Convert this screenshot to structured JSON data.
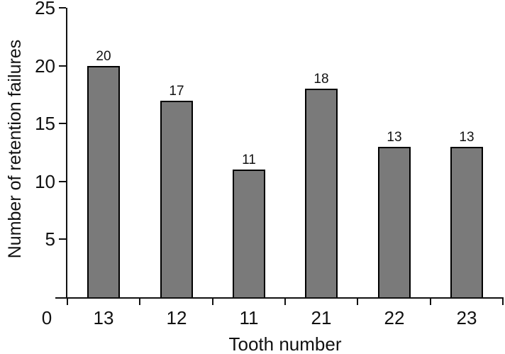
{
  "chart_data": {
    "type": "bar",
    "title": "",
    "categories": [
      "13",
      "12",
      "11",
      "21",
      "22",
      "23"
    ],
    "values": [
      20,
      17,
      11,
      18,
      13,
      13
    ],
    "xlabel": "Tooth number",
    "ylabel": "Number of retention failures",
    "ylim": [
      0,
      25
    ],
    "yticks": [
      0,
      5,
      10,
      15,
      20,
      25
    ],
    "origin_label": "0",
    "grid": false,
    "legend": "none",
    "bar_value_labels": [
      20,
      17,
      11,
      18,
      13,
      13
    ],
    "bar_fill_color": "#7a7a7a",
    "bar_border_color": "#000000",
    "axis_color": "#111111",
    "text_color": "#111111",
    "background_color": "#ffffff"
  }
}
